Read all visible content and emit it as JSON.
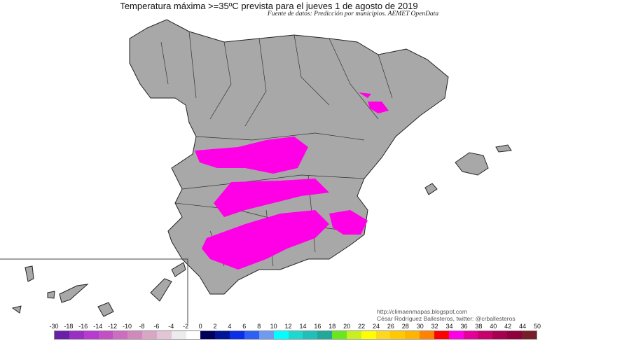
{
  "title": "Temperatura máxima >=35ºC prevista para el jueves 1 de agosto de 2019",
  "subtitle": "Fuente de datos: Predicción por municipios. AEMET OpenData",
  "credits": {
    "url": "http://climaenmapas.blogspot.com",
    "author": "César Rodríguez Ballesteros, twitter: @crballesteros"
  },
  "colors": {
    "land": "#a8a8a8",
    "highlight": "#ff00e6",
    "border": "#222222"
  },
  "legend": {
    "tick_labels": [
      "-30",
      "-18",
      "-16",
      "-14",
      "-12",
      "-10",
      "-8",
      "-6",
      "-4",
      "-2",
      "0",
      "2",
      "4",
      "6",
      "8",
      "10",
      "12",
      "14",
      "16",
      "18",
      "20",
      "22",
      "24",
      "26",
      "28",
      "30",
      "32",
      "34",
      "36",
      "38",
      "40",
      "42",
      "44",
      "50"
    ],
    "colors": [
      "#6a1fa8",
      "#9a2fc4",
      "#b83bd0",
      "#c34fc4",
      "#cc6dc0",
      "#d089bc",
      "#d9a6c6",
      "#e2c6d6",
      "#ececec",
      "#ffffff",
      "#00005a",
      "#00149a",
      "#0a2eea",
      "#2e60f5",
      "#6e9af0",
      "#00ffff",
      "#1ed8d0",
      "#20c0b8",
      "#20a898",
      "#6ae61e",
      "#c8f01e",
      "#ffff00",
      "#ffd81e",
      "#ffc800",
      "#ffb400",
      "#ff8200",
      "#ff0000",
      "#ff00e6",
      "#e6009a",
      "#c8006e",
      "#a80050",
      "#90003c",
      "#781e28"
    ]
  }
}
